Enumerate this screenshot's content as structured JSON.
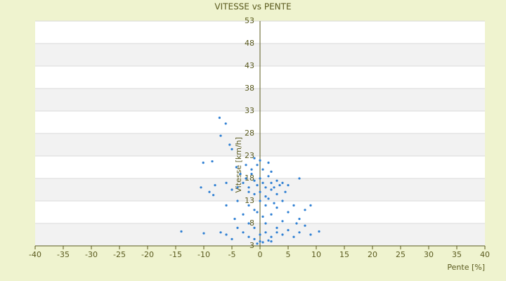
{
  "chart_data": {
    "type": "scatter",
    "title": "VITESSE vs PENTE",
    "x_label": "Pente [%]",
    "y_label": "Vitesse [km/h]",
    "color": "#2e7fd3",
    "grid": true,
    "xlim": [
      -40,
      40
    ],
    "xticks": [
      -40,
      -35,
      -30,
      -25,
      -20,
      -15,
      -10,
      -5,
      0,
      5,
      10,
      15,
      20,
      25,
      30,
      35,
      40
    ],
    "ylim": [
      3,
      53
    ],
    "yticks": [
      3,
      8,
      13,
      18,
      23,
      28,
      33,
      38,
      43,
      48,
      53
    ],
    "x": [
      -3,
      -2.5,
      -2,
      -1.5,
      -1,
      -0.5,
      0,
      0.5,
      1,
      1.5,
      2,
      2.5,
      3,
      3.5,
      4,
      -2,
      -1,
      0,
      1,
      2,
      3,
      -1.5,
      -0.5,
      0.5,
      1.5,
      0,
      -1,
      2,
      4.5,
      5,
      7,
      -4,
      -5,
      -6,
      -3.5,
      -2.5,
      -2,
      -1,
      0,
      1,
      2,
      3,
      4,
      5,
      6,
      7,
      8,
      9,
      -3,
      -4,
      -6,
      -9,
      0.5,
      -0.5,
      1.5,
      2.5,
      -3,
      -2,
      -1,
      0,
      1,
      2,
      3,
      4,
      5,
      6,
      7,
      8,
      9,
      10.5,
      -1,
      0,
      1,
      2,
      3,
      -2,
      -4,
      -5,
      -6,
      0.5,
      -0.5,
      1.5,
      4,
      6.5,
      -10,
      -14,
      -7,
      -4.5,
      -7.2,
      -6.1,
      -7,
      -5.4,
      -5,
      -10.1,
      -8.5,
      -4.2,
      -8,
      -10.5,
      -8.3
    ],
    "y": [
      17,
      18,
      16,
      19,
      17.5,
      16.5,
      18,
      17,
      16,
      18.5,
      17,
      16,
      17.5,
      16.5,
      17,
      15,
      14.5,
      15,
      14,
      15.5,
      14.5,
      20,
      21,
      20,
      21.5,
      22,
      22.5,
      19.5,
      15,
      16.5,
      18,
      16,
      15.5,
      17,
      19,
      21,
      12,
      11,
      13,
      12,
      10,
      11.5,
      13,
      10.5,
      12,
      9,
      11,
      12,
      10,
      13,
      12,
      15,
      9.5,
      10.5,
      13.5,
      12.5,
      6,
      5,
      7,
      4,
      6,
      5,
      7,
      5.5,
      6.5,
      5,
      6,
      7.5,
      5.5,
      6.2,
      4.5,
      5.5,
      8,
      4,
      6,
      8,
      7,
      4.5,
      5.5,
      3.8,
      3.5,
      4.2,
      8.5,
      8,
      5.8,
      6.2,
      6,
      9,
      31.5,
      30.2,
      27.5,
      25.5,
      24.5,
      21.5,
      21.8,
      20.5,
      16.5,
      16,
      14.3
    ]
  }
}
